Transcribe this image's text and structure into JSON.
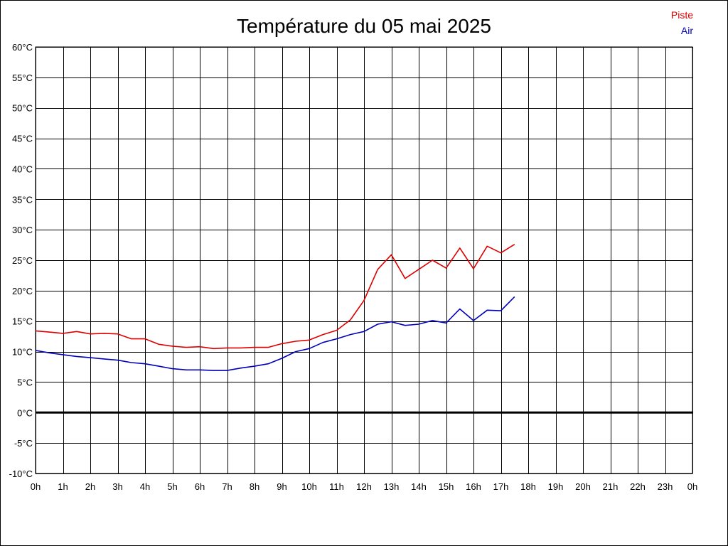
{
  "chart_data": {
    "type": "line",
    "title": "Température du 05 mai 2025",
    "xlabel": "",
    "ylabel": "",
    "x_ticks": [
      "0h",
      "1h",
      "2h",
      "3h",
      "4h",
      "5h",
      "6h",
      "7h",
      "8h",
      "9h",
      "10h",
      "11h",
      "12h",
      "13h",
      "14h",
      "15h",
      "16h",
      "17h",
      "18h",
      "19h",
      "20h",
      "21h",
      "22h",
      "23h",
      "0h"
    ],
    "y_ticks": [
      "60°C",
      "55°C",
      "50°C",
      "45°C",
      "40°C",
      "35°C",
      "30°C",
      "25°C",
      "20°C",
      "15°C",
      "10°C",
      "5°C",
      "0°C",
      "-5°C",
      "-10°C"
    ],
    "xlim": [
      0,
      24
    ],
    "ylim": [
      -10,
      60
    ],
    "grid": true,
    "zero_line": true,
    "legend_position": "top-right",
    "x": [
      0,
      0.5,
      1,
      1.5,
      2,
      2.5,
      3,
      3.5,
      4,
      4.5,
      5,
      5.5,
      6,
      6.5,
      7,
      7.5,
      8,
      8.5,
      9,
      9.5,
      10,
      10.5,
      11,
      11.5,
      12,
      12.5,
      13,
      13.5,
      14,
      14.5,
      15,
      15.5,
      16,
      16.5,
      17,
      17.5
    ],
    "series": [
      {
        "name": "Piste",
        "color": "#dd0000",
        "values": [
          13.4,
          13.2,
          13.0,
          13.3,
          12.9,
          13.0,
          12.9,
          12.1,
          12.1,
          11.2,
          10.9,
          10.7,
          10.8,
          10.5,
          10.6,
          10.6,
          10.7,
          10.7,
          11.3,
          11.7,
          11.9,
          12.8,
          13.5,
          15.2,
          18.4,
          23.5,
          25.9,
          22.0,
          23.5,
          25.0,
          23.7,
          27.0,
          23.6,
          27.3,
          26.2,
          27.6
        ]
      },
      {
        "name": "Air",
        "color": "#0000bb",
        "values": [
          10.2,
          9.8,
          9.5,
          9.2,
          9.0,
          8.8,
          8.6,
          8.2,
          8.0,
          7.6,
          7.2,
          7.0,
          7.0,
          6.9,
          6.9,
          7.3,
          7.6,
          8.0,
          8.9,
          10.0,
          10.5,
          11.5,
          12.1,
          12.8,
          13.3,
          14.5,
          14.9,
          14.3,
          14.5,
          15.1,
          14.7,
          17.0,
          15.1,
          16.8,
          16.7,
          19.0
        ]
      }
    ]
  }
}
